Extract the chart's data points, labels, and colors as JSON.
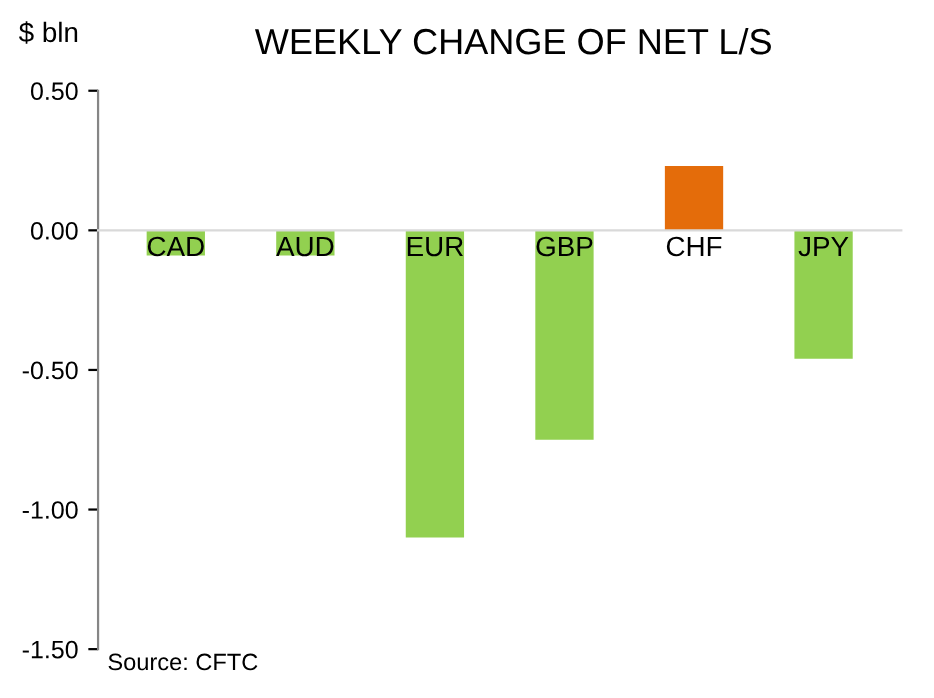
{
  "chart_data": {
    "type": "bar",
    "title": "WEEKLY CHANGE OF NET L/S",
    "ylabel": "$ bln",
    "categories": [
      "CAD",
      "AUD",
      "EUR",
      "GBP",
      "CHF",
      "JPY"
    ],
    "values": [
      -0.09,
      -0.09,
      -1.1,
      -0.75,
      0.23,
      -0.46
    ],
    "colors": [
      "#92d050",
      "#92d050",
      "#92d050",
      "#92d050",
      "#e46c0a",
      "#92d050"
    ],
    "ylim": [
      -1.5,
      0.5
    ],
    "yticks": [
      {
        "value": -1.5,
        "label": "-1.50"
      },
      {
        "value": -1.0,
        "label": "-1.00"
      },
      {
        "value": -0.5,
        "label": "-0.50"
      },
      {
        "value": 0,
        "label": "0.00"
      },
      {
        "value": 0.5,
        "label": "0.50"
      }
    ],
    "grid": false,
    "legend": false,
    "annotations": [
      "Source: CFTC"
    ]
  }
}
